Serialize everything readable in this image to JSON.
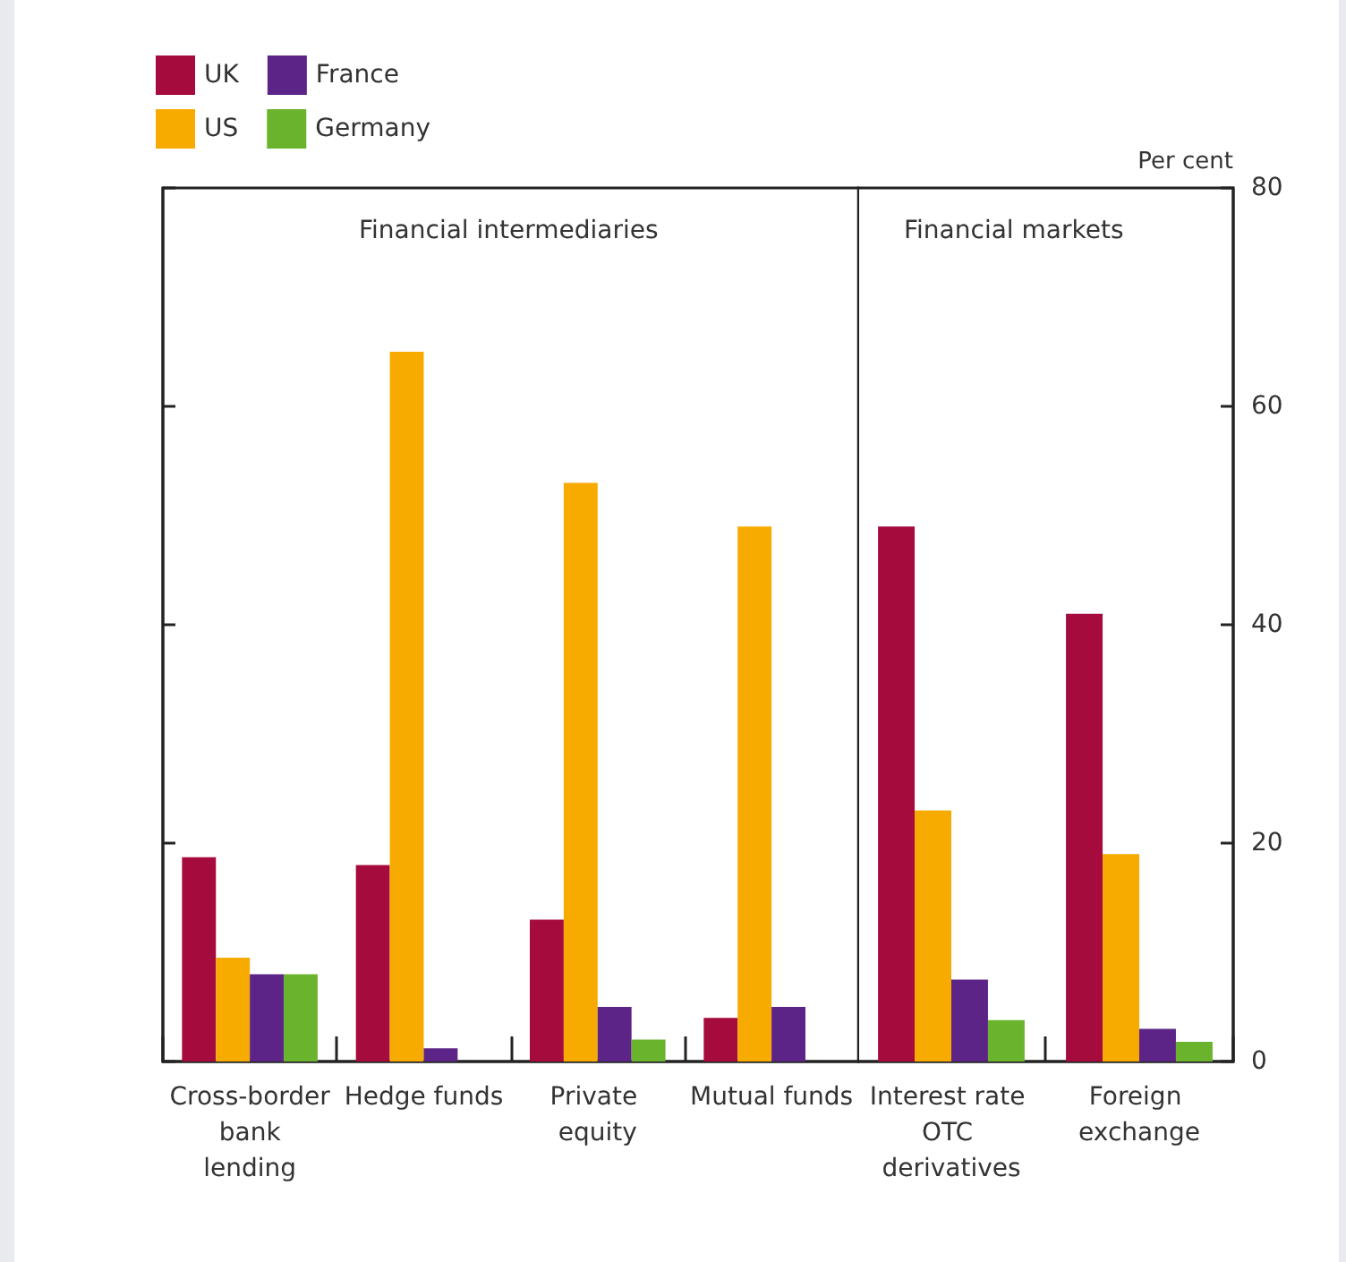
{
  "chart_data": [
    {
      "type": "bar",
      "title": "Financial intermediaries",
      "categories": [
        "Cross-border bank lending",
        "Hedge funds",
        "Private equity",
        "Mutual funds"
      ],
      "series": [
        {
          "name": "UK",
          "color": "#a50b3c",
          "values": [
            18.7,
            18,
            13,
            4
          ]
        },
        {
          "name": "US",
          "color": "#f7ab00",
          "values": [
            9.5,
            65,
            53,
            49
          ]
        },
        {
          "name": "France",
          "color": "#5b2486",
          "values": [
            8,
            1.2,
            5,
            5
          ]
        },
        {
          "name": "Germany",
          "color": "#6ab42d",
          "values": [
            8,
            null,
            2,
            null
          ]
        }
      ],
      "ylim": [
        0,
        80
      ],
      "yticks": [
        0,
        20,
        40,
        60,
        80
      ],
      "tick_labels": "x",
      "legend": "top left"
    },
    {
      "type": "bar",
      "title": "Financial markets",
      "ylabel": "Per cent",
      "categories": [
        "Interest rate OTC derivatives",
        "Foreign exchange"
      ],
      "series": [
        {
          "color": "#a50b3c",
          "values": [
            49,
            41
          ]
        },
        {
          "color": "#f7ab00",
          "values": [
            23,
            19
          ]
        },
        {
          "color": "#5b2486",
          "values": [
            7.5,
            3
          ]
        },
        {
          "color": "#6ab42d",
          "values": [
            3.8,
            1.8
          ]
        }
      ],
      "ylim": [
        0,
        80
      ],
      "yticks": [
        0,
        20,
        40,
        60,
        80
      ]
    }
  ]
}
